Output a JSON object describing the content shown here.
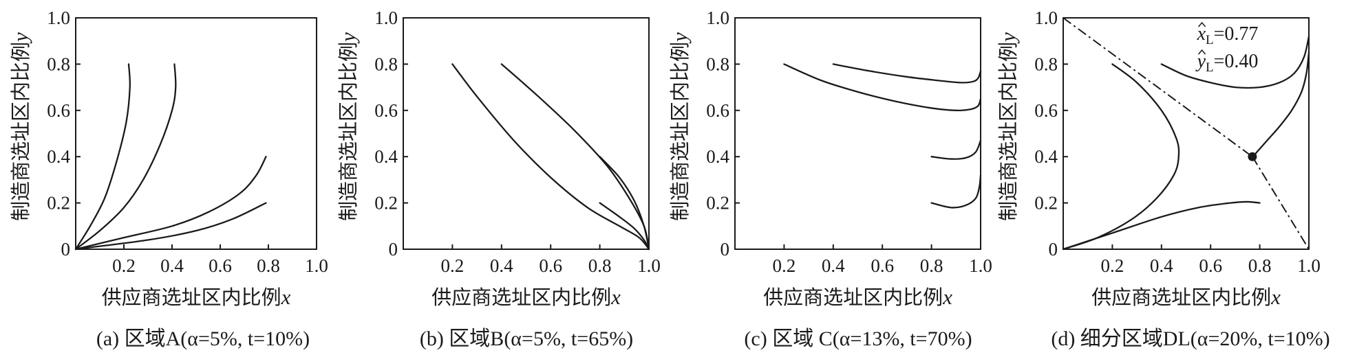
{
  "shared": {
    "xlabel": "供应商选址区内比例",
    "xlabel_var": "x",
    "ylabel": "制造商选址区内比例",
    "ylabel_var": "y",
    "origin_label": "0",
    "xlim": [
      0,
      1
    ],
    "ylim": [
      0,
      1
    ],
    "x_ticks": [
      "0.2",
      "0.4",
      "0.6",
      "0.8",
      "1.0"
    ],
    "y_ticks": [
      "0.2",
      "0.4",
      "0.6",
      "0.8",
      "1.0"
    ]
  },
  "chart_data": [
    {
      "type": "line",
      "caption": "(a) 区域A(α=5%, t=10%)",
      "series": [
        {
          "x": [
            0.0,
            0.06,
            0.12,
            0.17,
            0.21,
            0.225,
            0.22
          ],
          "y": [
            0.0,
            0.1,
            0.22,
            0.38,
            0.55,
            0.7,
            0.8
          ]
        },
        {
          "x": [
            0.0,
            0.1,
            0.2,
            0.28,
            0.35,
            0.4,
            0.415,
            0.41
          ],
          "y": [
            0.0,
            0.08,
            0.18,
            0.3,
            0.45,
            0.6,
            0.7,
            0.8
          ]
        },
        {
          "x": [
            0.0,
            0.2,
            0.4,
            0.55,
            0.68,
            0.75,
            0.79
          ],
          "y": [
            0.0,
            0.05,
            0.1,
            0.16,
            0.24,
            0.32,
            0.4
          ]
        },
        {
          "x": [
            0.0,
            0.3,
            0.5,
            0.65,
            0.79
          ],
          "y": [
            0.0,
            0.04,
            0.08,
            0.13,
            0.2
          ]
        }
      ]
    },
    {
      "type": "line",
      "caption": "(b) 区域B(α=5%, t=65%)",
      "series": [
        {
          "x": [
            0.2,
            0.3,
            0.45,
            0.6,
            0.75,
            0.88,
            0.96,
            1.0
          ],
          "y": [
            0.8,
            0.66,
            0.47,
            0.31,
            0.18,
            0.1,
            0.05,
            0.0
          ]
        },
        {
          "x": [
            0.4,
            0.55,
            0.7,
            0.83,
            0.92,
            0.98,
            1.0
          ],
          "y": [
            0.8,
            0.66,
            0.51,
            0.36,
            0.22,
            0.1,
            0.0
          ]
        },
        {
          "x": [
            0.8,
            0.88,
            0.94,
            0.98,
            1.0
          ],
          "y": [
            0.4,
            0.31,
            0.21,
            0.1,
            0.0
          ]
        },
        {
          "x": [
            0.8,
            0.88,
            0.94,
            0.98,
            1.0
          ],
          "y": [
            0.2,
            0.14,
            0.09,
            0.04,
            0.0
          ]
        }
      ]
    },
    {
      "type": "line",
      "caption": "(c) 区域 C(α=13%, t=70%)",
      "series": [
        {
          "x": [
            0.2,
            0.35,
            0.5,
            0.65,
            0.8,
            0.9,
            0.96,
            0.99,
            1.0
          ],
          "y": [
            0.8,
            0.73,
            0.68,
            0.64,
            0.61,
            0.6,
            0.605,
            0.62,
            0.65
          ]
        },
        {
          "x": [
            0.4,
            0.55,
            0.7,
            0.82,
            0.92,
            0.97,
            0.99,
            1.0
          ],
          "y": [
            0.8,
            0.77,
            0.745,
            0.73,
            0.72,
            0.725,
            0.74,
            0.77
          ]
        },
        {
          "x": [
            0.8,
            0.88,
            0.94,
            0.98,
            1.0
          ],
          "y": [
            0.4,
            0.39,
            0.395,
            0.42,
            0.47
          ]
        },
        {
          "x": [
            0.8,
            0.88,
            0.94,
            0.98,
            0.995,
            1.0
          ],
          "y": [
            0.2,
            0.18,
            0.19,
            0.22,
            0.27,
            0.32
          ]
        }
      ]
    },
    {
      "type": "line",
      "caption": "(d) 细分区域DL(α=20%, t=10%)",
      "annotations": {
        "xhat": "=0.77",
        "yhat": "=0.40",
        "sub": "L",
        "xvar": "x",
        "yvar": "y"
      },
      "point": {
        "x": 0.77,
        "y": 0.4
      },
      "separatrix": [
        {
          "x": [
            0.0,
            0.77
          ],
          "y": [
            1.0,
            0.4
          ]
        },
        {
          "x": [
            0.77,
            1.0
          ],
          "y": [
            0.4,
            0.0
          ]
        }
      ],
      "series": [
        {
          "x": [
            0.2,
            0.3,
            0.4,
            0.46,
            0.47,
            0.45,
            0.38,
            0.28,
            0.14,
            0.0
          ],
          "y": [
            0.8,
            0.72,
            0.6,
            0.48,
            0.4,
            0.32,
            0.22,
            0.13,
            0.05,
            0.0
          ]
        },
        {
          "x": [
            0.0,
            0.2,
            0.4,
            0.55,
            0.68,
            0.75,
            0.8
          ],
          "y": [
            0.0,
            0.07,
            0.14,
            0.18,
            0.2,
            0.205,
            0.2
          ]
        },
        {
          "x": [
            0.4,
            0.5,
            0.6,
            0.7,
            0.8,
            0.88,
            0.94,
            0.98,
            1.0
          ],
          "y": [
            0.8,
            0.75,
            0.72,
            0.7,
            0.7,
            0.72,
            0.76,
            0.83,
            0.92
          ]
        },
        {
          "x": [
            0.78,
            0.83,
            0.88,
            0.93,
            0.97,
            0.99,
            1.0
          ],
          "y": [
            0.41,
            0.47,
            0.53,
            0.6,
            0.68,
            0.76,
            0.85
          ]
        }
      ]
    }
  ]
}
